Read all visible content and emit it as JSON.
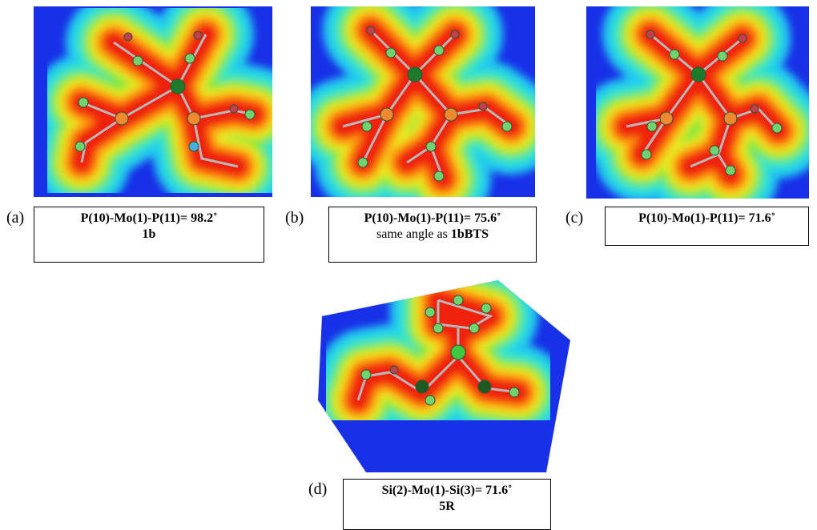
{
  "panels": [
    {
      "label": "(a)",
      "caption": {
        "line1": "P(10)-Mo(1)-P(11)= 98.2˚",
        "line2": "1b"
      }
    },
    {
      "label": "(b)",
      "caption": {
        "line1": "P(10)-Mo(1)-P(11)= 75.6˚",
        "line2_text": "same angle as",
        "line2_bold": "1bBTS"
      }
    },
    {
      "label": "(c)",
      "caption": {
        "line1": "P(10)-Mo(1)-P(11)= 71.6˚"
      }
    },
    {
      "label": "(d)",
      "caption": {
        "line1": "Si(2)-Mo(1)-Si(3)= 71.6˚",
        "line2": "5R"
      }
    }
  ]
}
